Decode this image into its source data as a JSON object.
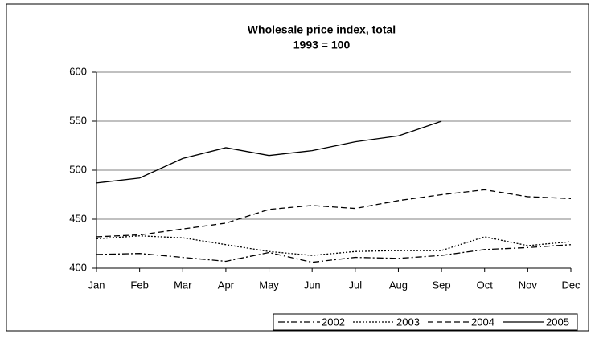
{
  "chart_data": {
    "type": "line",
    "title": "Wholesale price index, total",
    "subtitle": "1993 = 100",
    "categories": [
      "Jan",
      "Feb",
      "Mar",
      "Apr",
      "May",
      "Jun",
      "Jul",
      "Aug",
      "Sep",
      "Oct",
      "Nov",
      "Dec"
    ],
    "series": [
      {
        "name": "2002",
        "color": "#000000",
        "dash": "8,3,2,3",
        "values": [
          414,
          415,
          411,
          407,
          416,
          406,
          411,
          410,
          413,
          419,
          421,
          424
        ]
      },
      {
        "name": "2003",
        "color": "#000000",
        "dash": "2,2",
        "values": [
          430,
          433,
          431,
          424,
          417,
          413,
          417,
          418,
          418,
          432,
          423,
          427
        ]
      },
      {
        "name": "2004",
        "color": "#000000",
        "dash": "7,4",
        "values": [
          432,
          434,
          440,
          446,
          460,
          464,
          461,
          469,
          475,
          480,
          473,
          471
        ]
      },
      {
        "name": "2005",
        "color": "#000000",
        "dash": "none",
        "values": [
          487,
          492,
          512,
          523,
          515,
          520,
          529,
          535,
          550,
          null,
          null,
          null
        ]
      }
    ],
    "ylim": [
      400,
      600
    ],
    "yticks": [
      400,
      450,
      500,
      550,
      600
    ],
    "grid": true,
    "legend": "bottom-right"
  }
}
